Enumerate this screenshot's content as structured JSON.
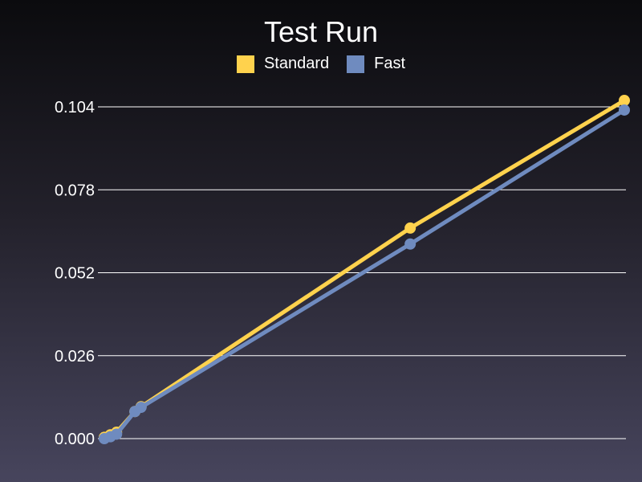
{
  "chart_data": {
    "type": "line",
    "title": "Test Run",
    "xlabel": "",
    "ylabel": "",
    "ylim": [
      0,
      0.104
    ],
    "yticks": [
      "0.000",
      "0.026",
      "0.052",
      "0.078",
      "0.104"
    ],
    "grid": true,
    "legend_position": "top-center",
    "series": [
      {
        "name": "Standard",
        "color": "#ffd24d",
        "points": [
          [
            0.0,
            0.0004
          ],
          [
            0.02,
            0.0012
          ],
          [
            0.04,
            0.002
          ],
          [
            0.1,
            0.0085
          ],
          [
            0.12,
            0.01
          ],
          [
            1.0,
            0.066
          ],
          [
            1.7,
            0.106
          ]
        ]
      },
      {
        "name": "Fast",
        "color": "#6f8bbf",
        "points": [
          [
            0.0,
            0.0
          ],
          [
            0.02,
            0.0006
          ],
          [
            0.04,
            0.0014
          ],
          [
            0.1,
            0.0085
          ],
          [
            0.12,
            0.0098
          ],
          [
            1.0,
            0.061
          ],
          [
            1.7,
            0.103
          ]
        ]
      }
    ],
    "xlim": [
      0,
      1.7
    ]
  }
}
